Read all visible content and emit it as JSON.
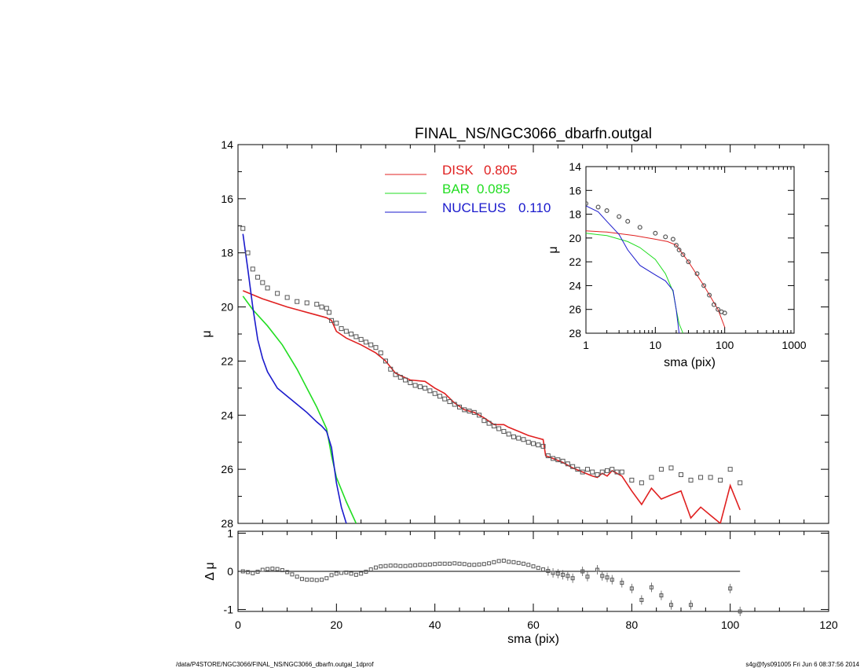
{
  "footer": {
    "path": "/data/P4STORE/NGC3066/FINAL_NS/NGC3066_dbarfn.outgal_1dprof",
    "stamp": "s4g@fys091005  Fri Jun  6 08:37:56 2014"
  },
  "colors": {
    "disk": "#e02020",
    "bar": "#22dd22",
    "nucleus": "#1a1acc",
    "data": "#555555"
  },
  "chart_data": [
    {
      "panel": "main",
      "type": "line",
      "title": "FINAL_NS/NGC3066_dbarfn.outgal",
      "xlabel": "",
      "ylabel": "μ",
      "xlim": [
        0,
        120
      ],
      "ylim": [
        28,
        14
      ],
      "yticks": [
        "14",
        "16",
        "18",
        "20",
        "22",
        "24",
        "26",
        "28"
      ],
      "legend_placement": "top-center",
      "series": [
        {
          "name": "DISK",
          "legend_value": "0.805",
          "color": "#e02020",
          "x": [
            1,
            5,
            10,
            15,
            18,
            19,
            20,
            22,
            25,
            28,
            30,
            32,
            35,
            38,
            40,
            42,
            44,
            46,
            48,
            50,
            52,
            54,
            55,
            57,
            59,
            61,
            62,
            62.5,
            64,
            66,
            68,
            70,
            72,
            73,
            74,
            75,
            76,
            78,
            80,
            82,
            84,
            86,
            88,
            90,
            92,
            94,
            96,
            98,
            100,
            102
          ],
          "y": [
            19.4,
            19.7,
            20.0,
            20.25,
            20.4,
            20.5,
            20.9,
            21.15,
            21.4,
            21.7,
            22.0,
            22.45,
            22.7,
            22.75,
            23.0,
            23.2,
            23.55,
            23.8,
            23.9,
            24.1,
            24.35,
            24.35,
            24.45,
            24.6,
            24.75,
            24.85,
            24.9,
            25.5,
            25.6,
            25.75,
            25.95,
            26.1,
            26.25,
            26.3,
            26.15,
            26.25,
            26.05,
            26.25,
            26.8,
            27.3,
            26.7,
            27.1,
            26.95,
            26.8,
            27.8,
            27.4,
            27.7,
            28.0,
            26.6,
            27.5
          ]
        },
        {
          "name": "BAR",
          "legend_value": "0.085",
          "color": "#22dd22",
          "x": [
            1,
            3,
            6,
            9,
            12,
            14,
            16,
            17,
            18,
            19,
            20,
            22,
            24
          ],
          "y": [
            19.6,
            20.1,
            20.7,
            21.4,
            22.3,
            23.0,
            23.7,
            24.1,
            24.5,
            25.5,
            26.3,
            27.2,
            28.0
          ]
        },
        {
          "name": "NUCLEUS",
          "legend_value": "0.110",
          "color": "#1a1acc",
          "x": [
            1,
            2,
            3,
            4,
            5,
            6,
            8,
            10,
            12,
            14,
            16,
            17,
            18,
            19,
            20,
            21,
            22
          ],
          "y": [
            17.3,
            18.6,
            20.0,
            21.2,
            21.9,
            22.4,
            23.0,
            23.3,
            23.6,
            23.9,
            24.25,
            24.4,
            24.6,
            25.2,
            26.5,
            27.4,
            28.0
          ]
        },
        {
          "name": "",
          "kind": "data-points",
          "color": "#555555",
          "x": [
            1,
            2,
            3,
            4,
            5,
            6,
            8,
            10,
            12,
            14,
            16,
            17,
            18,
            18.5,
            19,
            20,
            21,
            22,
            23,
            24,
            25,
            26,
            27,
            28,
            29,
            30,
            31,
            32,
            33,
            34,
            35,
            36,
            37,
            38,
            39,
            40,
            41,
            42,
            43,
            44,
            45,
            46,
            47,
            48,
            49,
            50,
            51,
            52,
            53,
            54,
            55,
            56,
            57,
            58,
            59,
            60,
            61,
            62,
            63,
            64,
            65,
            66,
            67,
            68,
            69,
            70,
            71,
            72,
            73,
            74,
            75,
            76,
            77,
            78,
            80,
            82,
            84,
            86,
            88,
            90,
            92,
            94,
            96,
            98,
            100,
            102
          ],
          "y": [
            17.1,
            18.0,
            18.6,
            18.9,
            19.1,
            19.3,
            19.5,
            19.65,
            19.8,
            19.85,
            19.9,
            20.0,
            20.05,
            20.2,
            20.5,
            20.6,
            20.8,
            20.9,
            21.0,
            21.1,
            21.2,
            21.3,
            21.4,
            21.5,
            21.7,
            22.0,
            22.3,
            22.5,
            22.6,
            22.7,
            22.8,
            22.9,
            22.95,
            23.0,
            23.1,
            23.2,
            23.3,
            23.4,
            23.5,
            23.6,
            23.7,
            23.8,
            23.85,
            23.9,
            24.0,
            24.2,
            24.3,
            24.4,
            24.5,
            24.6,
            24.7,
            24.8,
            24.85,
            24.9,
            25.0,
            25.05,
            25.1,
            25.15,
            25.5,
            25.6,
            25.65,
            25.7,
            25.8,
            25.9,
            26.0,
            26.1,
            26.0,
            26.1,
            26.2,
            26.1,
            26.05,
            26.0,
            26.1,
            26.1,
            26.4,
            26.5,
            26.3,
            26.0,
            25.95,
            26.2,
            26.4,
            26.3,
            26.3,
            26.4,
            26.0,
            26.5
          ]
        }
      ]
    },
    {
      "panel": "inset",
      "type": "line",
      "xlabel": "sma (pix)",
      "ylabel": "μ",
      "xscale": "log",
      "xlim": [
        1,
        1000
      ],
      "ylim": [
        28,
        14
      ],
      "xticks": [
        "1",
        "10",
        "100",
        "1000"
      ],
      "yticks": [
        "14",
        "16",
        "18",
        "20",
        "22",
        "24",
        "26",
        "28"
      ],
      "series": [
        {
          "name": "DISK",
          "color": "#e02020",
          "x": [
            1,
            2,
            5,
            10,
            15,
            20,
            30,
            50,
            80,
            100
          ],
          "y": [
            19.4,
            19.5,
            19.8,
            20.1,
            20.3,
            20.6,
            22.0,
            24.0,
            26.0,
            27.5
          ]
        },
        {
          "name": "BAR",
          "color": "#22dd22",
          "x": [
            1,
            2,
            4,
            6,
            10,
            14,
            18,
            20,
            22,
            25
          ],
          "y": [
            19.6,
            19.8,
            20.3,
            20.8,
            21.8,
            23.0,
            24.5,
            26.0,
            27.2,
            28.0
          ]
        },
        {
          "name": "NUCLEUS",
          "color": "#1a1acc",
          "x": [
            1,
            1.5,
            2,
            3,
            4,
            6,
            10,
            14,
            18,
            20,
            22
          ],
          "y": [
            17.3,
            17.8,
            18.6,
            19.7,
            21.0,
            22.3,
            23.1,
            23.6,
            24.4,
            26.0,
            28.0
          ]
        },
        {
          "name": "",
          "kind": "data-points",
          "color": "#555555",
          "x": [
            1,
            1.5,
            2,
            3,
            4,
            6,
            10,
            14,
            18,
            20,
            22,
            25,
            30,
            40,
            50,
            60,
            70,
            80,
            90,
            100
          ],
          "y": [
            17.1,
            17.4,
            17.7,
            18.2,
            18.6,
            19.1,
            19.6,
            19.9,
            20.1,
            20.6,
            21.0,
            21.4,
            22.0,
            23.0,
            24.0,
            24.8,
            25.6,
            26.0,
            26.2,
            26.3
          ]
        }
      ]
    },
    {
      "panel": "residual",
      "type": "scatter",
      "xlabel": "sma (pix)",
      "ylabel": "Δ μ",
      "xlim": [
        0,
        120
      ],
      "ylim": [
        -1.05,
        1.05
      ],
      "xticks": [
        "0",
        "20",
        "40",
        "60",
        "80",
        "100",
        "120"
      ],
      "yticks": [
        "1",
        "0",
        "-1"
      ],
      "zero_line": true,
      "series": [
        {
          "name": "",
          "color": "#555555",
          "x": [
            1,
            2,
            3,
            4,
            5,
            6,
            7,
            8,
            9,
            10,
            11,
            12,
            13,
            14,
            15,
            16,
            17,
            18,
            19,
            20,
            21,
            22,
            23,
            24,
            25,
            26,
            27,
            28,
            29,
            30,
            31,
            32,
            33,
            34,
            35,
            36,
            37,
            38,
            39,
            40,
            41,
            42,
            43,
            44,
            45,
            46,
            47,
            48,
            49,
            50,
            51,
            52,
            53,
            54,
            55,
            56,
            57,
            58,
            59,
            60,
            61,
            62,
            63,
            64,
            65,
            66,
            67,
            68,
            70,
            71,
            73,
            74,
            75,
            76,
            78,
            80,
            82,
            84,
            86,
            88,
            92,
            100,
            102
          ],
          "y": [
            0.0,
            -0.02,
            -0.05,
            -0.01,
            0.04,
            0.06,
            0.07,
            0.06,
            0.03,
            -0.02,
            -0.08,
            -0.14,
            -0.2,
            -0.22,
            -0.22,
            -0.23,
            -0.22,
            -0.18,
            -0.1,
            -0.06,
            -0.04,
            -0.03,
            -0.06,
            -0.09,
            -0.06,
            -0.01,
            0.05,
            0.1,
            0.13,
            0.14,
            0.15,
            0.15,
            0.14,
            0.14,
            0.15,
            0.16,
            0.17,
            0.17,
            0.18,
            0.19,
            0.2,
            0.2,
            0.2,
            0.21,
            0.2,
            0.19,
            0.17,
            0.17,
            0.18,
            0.19,
            0.21,
            0.24,
            0.27,
            0.28,
            0.25,
            0.24,
            0.22,
            0.2,
            0.17,
            0.13,
            0.09,
            0.05,
            0.01,
            -0.04,
            -0.06,
            -0.09,
            -0.12,
            -0.18,
            0.0,
            -0.14,
            0.04,
            -0.12,
            -0.16,
            -0.22,
            -0.3,
            -0.45,
            -0.75,
            -0.42,
            -0.63,
            -0.88,
            -0.88,
            -0.45,
            -1.05
          ]
        }
      ]
    }
  ]
}
